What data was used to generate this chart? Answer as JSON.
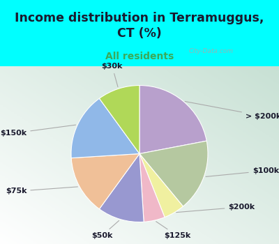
{
  "title": "Income distribution in Terramuggus,\nCT (%)",
  "subtitle": "All residents",
  "title_color": "#1a1a2e",
  "subtitle_color": "#3aaa5a",
  "background_color": "#00ffff",
  "watermark": "City-Data.com",
  "labels": [
    "> $200k",
    "$100k",
    "$200k",
    "$125k",
    "$50k",
    "$75k",
    "$150k",
    "$30k"
  ],
  "values": [
    22,
    17,
    5,
    5,
    11,
    14,
    16,
    10
  ],
  "colors": [
    "#b8a0cc",
    "#b5c8a0",
    "#f0f0a0",
    "#f0b8c8",
    "#9898d0",
    "#f0c098",
    "#90b8e8",
    "#b0d858"
  ],
  "startangle": 90,
  "label_fontsize": 8,
  "title_fontsize": 12.5,
  "subtitle_fontsize": 10
}
